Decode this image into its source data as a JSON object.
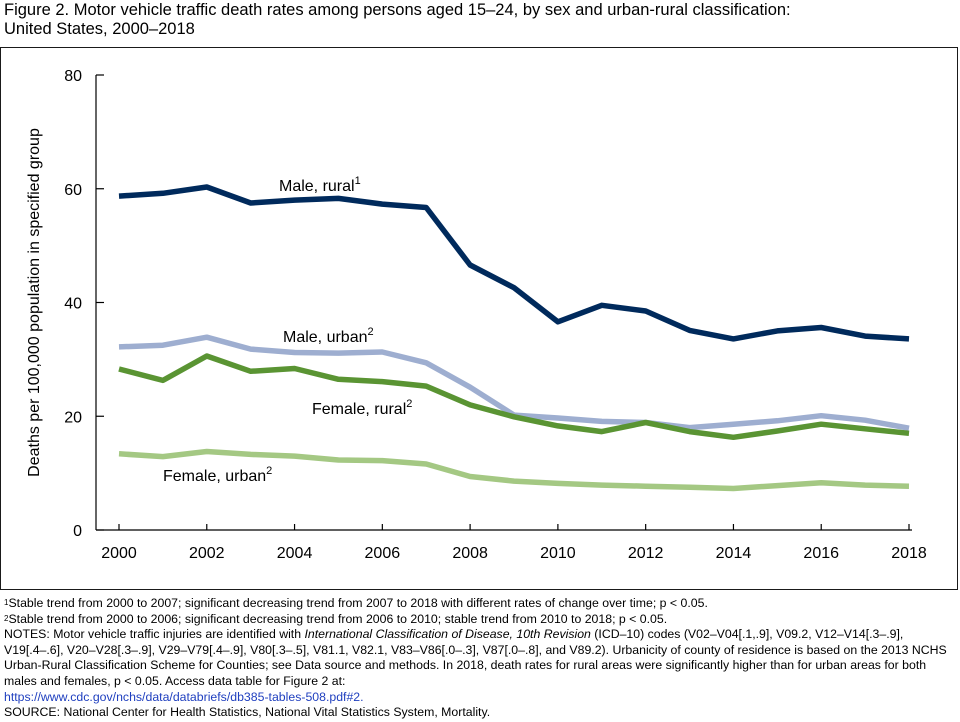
{
  "title": {
    "line1": "Figure 2. Motor vehicle traffic death rates among persons aged 15–24, by sex and urban-rural classification:",
    "line2": "United States, 2000–2018"
  },
  "chart_data": {
    "type": "line",
    "ylabel": "Deaths per 100,000 population in specified group",
    "xlabel": "",
    "xlim": [
      2000,
      2018
    ],
    "ylim": [
      0,
      80
    ],
    "xticks": [
      2000,
      2002,
      2004,
      2006,
      2008,
      2010,
      2012,
      2014,
      2016,
      2018
    ],
    "xtick_labels": [
      "2000",
      "2002",
      "2004",
      "2006",
      "2008",
      "2010",
      "2012",
      "2014",
      "2016",
      "2018"
    ],
    "yticks": [
      0,
      20,
      40,
      60,
      80
    ],
    "ytick_labels": [
      "0",
      "20",
      "40",
      "60",
      "80"
    ],
    "grid": false,
    "legend": "inline labels",
    "x": [
      2000,
      2001,
      2002,
      2003,
      2004,
      2005,
      2006,
      2007,
      2008,
      2009,
      2010,
      2011,
      2012,
      2013,
      2014,
      2015,
      2016,
      2017,
      2018
    ],
    "series": [
      {
        "name": "Male, rural",
        "sup": "1",
        "color": "#002a5c",
        "values": [
          58.7,
          59.2,
          60.3,
          57.5,
          58.0,
          58.3,
          57.3,
          56.7,
          46.6,
          42.6,
          36.6,
          39.5,
          38.5,
          35.1,
          33.6,
          35.0,
          35.6,
          34.1,
          33.6
        ]
      },
      {
        "name": "Male, urban",
        "sup": "2",
        "color": "#9eaed0",
        "values": [
          32.2,
          32.5,
          33.9,
          31.8,
          31.2,
          31.1,
          31.3,
          29.4,
          25.1,
          20.2,
          19.7,
          19.1,
          18.9,
          18.0,
          18.6,
          19.2,
          20.1,
          19.3,
          17.9
        ]
      },
      {
        "name": "Female, rural",
        "sup": "2",
        "color": "#5a9433",
        "values": [
          28.3,
          26.3,
          30.6,
          27.9,
          28.4,
          26.5,
          26.1,
          25.3,
          22.0,
          19.9,
          18.3,
          17.3,
          18.9,
          17.3,
          16.3,
          17.4,
          18.6,
          17.8,
          17.0
        ]
      },
      {
        "name": "Female, urban",
        "sup": "2",
        "color": "#a4c883",
        "values": [
          13.4,
          12.9,
          13.8,
          13.3,
          13.0,
          12.3,
          12.2,
          11.6,
          9.4,
          8.6,
          8.2,
          7.9,
          7.7,
          7.5,
          7.3,
          7.8,
          8.3,
          7.9,
          7.7
        ]
      }
    ]
  },
  "footnotes": {
    "n1_sup": "1",
    "n1": "Stable trend from 2000 to 2007; significant decreasing trend from 2007 to 2018 with different rates of change over time; p < 0.05.",
    "n2_sup": "2",
    "n2": "Stable trend from 2000 to 2006; significant decreasing trend from 2006 to 2010; stable trend from 2010 to 2018;  p < 0.05.",
    "notes_a": "NOTES: Motor vehicle traffic injuries are identified with ",
    "notes_italic": "International Classification of Disease, 10th Revision",
    "notes_b": " (ICD–10) codes (V02–V04[.1,.9], V09.2, V12–V14[.3–.9], V19[.4–.6], V20–V28[.3–.9], V29–V79[.4–.9], V80[.3–.5], V81.1, V82.1, V83–V86[.0–.3], V87[.0–.8], and V89.2). Urbanicity of county of residence is based on the 2013 NCHS Urban-Rural Classification Scheme for Counties; see Data source and methods. In 2018, death rates for rural areas were significantly higher than for urban areas for both males and females, p < 0.05. Access data table for Figure 2 at:",
    "link": "https://www.cdc.gov/nchs/data/databriefs/db385-tables-508.pdf#2.",
    "source": "SOURCE: National Center for Health Statistics, National Vital Statistics System, Mortality."
  }
}
